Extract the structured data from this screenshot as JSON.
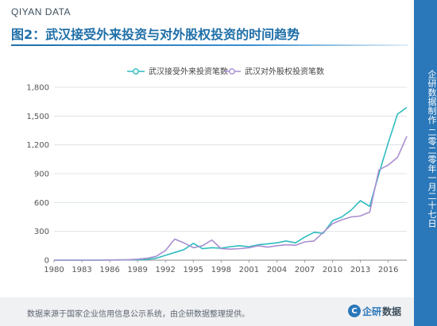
{
  "header": {
    "brand": "QIYAN DATA",
    "title": "图2：武汉接受外来投资与对外股权投资的时间趋势"
  },
  "sidebar": {
    "text": "企研数据制作 二零二零年一月二十七日"
  },
  "footer": {
    "source": "数据来源于国家企业信用信息公示系统，由企研数据整理提供。",
    "logo_word1": "企研",
    "logo_word2": "数据"
  },
  "colors": {
    "series1": "#2ebcc0",
    "series2": "#a98fd0",
    "accent": "#2a77b9"
  },
  "chart_data": {
    "type": "line",
    "x": [
      1980,
      1981,
      1982,
      1983,
      1984,
      1985,
      1986,
      1987,
      1988,
      1989,
      1990,
      1991,
      1992,
      1993,
      1994,
      1995,
      1996,
      1997,
      1998,
      1999,
      2000,
      2001,
      2002,
      2003,
      2004,
      2005,
      2006,
      2007,
      2008,
      2009,
      2010,
      2011,
      2012,
      2013,
      2014,
      2015,
      2016,
      2017,
      2018
    ],
    "series": [
      {
        "name": "武汉接受外来投资笔数",
        "values": [
          0,
          0,
          0,
          0,
          0,
          0,
          2,
          2,
          3,
          5,
          8,
          20,
          50,
          80,
          110,
          175,
          120,
          130,
          125,
          140,
          150,
          140,
          160,
          170,
          180,
          200,
          180,
          240,
          290,
          280,
          410,
          450,
          520,
          620,
          560,
          900,
          1220,
          1520,
          1590
        ]
      },
      {
        "name": "武汉对外股权投资笔数",
        "values": [
          0,
          0,
          0,
          0,
          0,
          0,
          2,
          3,
          5,
          10,
          20,
          40,
          100,
          220,
          180,
          130,
          150,
          210,
          120,
          115,
          120,
          130,
          150,
          135,
          150,
          160,
          155,
          190,
          200,
          290,
          380,
          420,
          450,
          460,
          500,
          940,
          990,
          1070,
          1290
        ]
      }
    ],
    "xticks": [
      1980,
      1983,
      1986,
      1989,
      1992,
      1995,
      1998,
      2001,
      2004,
      2007,
      2010,
      2013,
      2016
    ],
    "yticks": [
      0,
      300,
      600,
      900,
      1200,
      1500,
      1800
    ],
    "ylim": [
      0,
      1800
    ],
    "grid": true,
    "legend": "top"
  }
}
